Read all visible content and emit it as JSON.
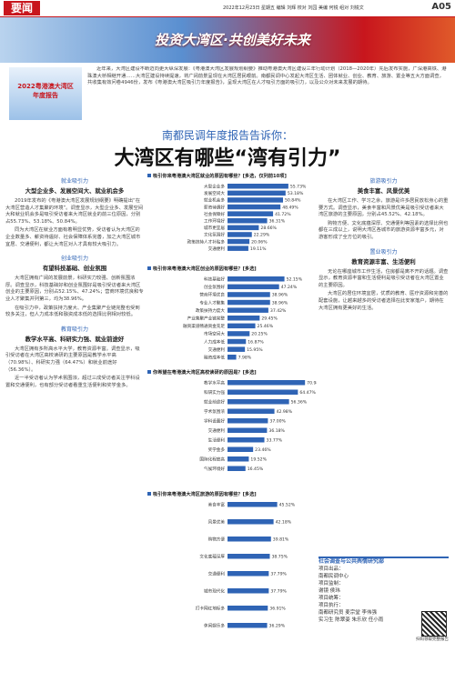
{
  "header": {
    "section": "要闻",
    "date": "2022年12月23日 星期五 编辑 刘辉 校对 刘园 美编 何锐 组对 刘锐文",
    "page": "A05"
  },
  "banner": {
    "title": "投资大湾区·共创美好未来"
  },
  "intro": {
    "logo": "2022粤港澳大湾区年度报告",
    "text": "近年来，大湾区建设不断迈向更大纵深发展：《粤港澳大湾区发展规划纲要》推动粤港澳大湾区建设三年行动计划（2018—2020年）先后发布实施，广深港高铁、港珠澳大桥相继开通……大湾区建设持续提速，将广阔前景呈现在大湾区居民眼前。南都民调中心发起大湾区生活、团体就业、创业、教育、旅游、置业等五大方面调查，共收集有效问卷4946份，发布《粤港澳大湾区吸引力年度报告》，呈现大湾区在人才吸引方面的吸引力，以及公众对未来发展的期待。"
  },
  "headline": {
    "kicker": "南都民调年度报告告诉你：",
    "title": "大湾区有哪些“湾有引力”"
  },
  "sections": [
    {
      "label": "就业吸引力",
      "subtitle": "大型企业多、发展空间大、就业机会多",
      "paragraphs": [
        "2019年发布的《粤港澳大湾区发展规划纲要》明确提出“在大湾区营造人才集聚的环境”。调查显示，大型企业多、发展空间大和就业机会多是吸引受访者来大湾区就业的前三位原因，分别占55.73%、53.18%、50.84%。",
        "同为大湾区在就业方面有着明显优势，受访者认为大湾区的企业数量多、薪资待遇好、社会保障体系完善，加之大湾区城市宜居、交通便利，都让大湾区对人才具有较大吸引力。"
      ]
    },
    {
      "label": "创业吸引力",
      "subtitle": "有望科技基础、创业氛围",
      "paragraphs": [
        "大湾区拥有广阔的发展前景，科研实力较强、创新氛围浓厚。调查显示，科技基础好和创业氛围好是吸引受访者来大湾区创业的主要原因，分别占52.15%、47.24%；营商环境优良和专业人才聚集并列第三，均为38.96%。",
        "在吸引力中，政策扶持力度大、产业集聚产业链完整也受到较多关注，但人力成本低和融资成本低的选择比例相对较低。"
      ]
    },
    {
      "label": "教育吸引力",
      "subtitle": "教学水平高、科研实力强、就业前途好",
      "paragraphs": [
        "大湾区拥有多所高水平大学，教育资源丰富。调查显示，吸引受访者在大湾区高校读研的主要原因是教学水平高（70.98%）、科研实力强（64.47%）和就业前途好（56.36%）。",
        "近一半受访者认为学术氛围浓，超过三成受访者关注学科设置和交通便利，也有部分受访者看重生活便利和奖学金多。"
      ]
    },
    {
      "label": "旅游吸引力",
      "subtitle": "美食丰富、风景优美",
      "paragraphs": [
        "在大湾区工作、学习之余，旅游是许多居民放松身心的重要方式。调查显示，美食丰富和风景优美是吸引受访者来大湾区旅游的主要原因，分别占45.52%、42.18%。",
        "购物方便、文化底蕴深厚、交通便利等因素的选择比例也都在三成以上，说明大湾区各城市的旅游资源丰富多元，对游客形成了全方位的吸引。"
      ]
    },
    {
      "label": "置业吸引力",
      "subtitle": "教育资源丰富、生活便利",
      "paragraphs": [
        "无论在哪座城市工作生活，住房都是离不开的话题。调查显示，教育资源丰富和生活便利是吸引受访者在大湾区置业的主要原因。",
        "大湾区的居住环境宜居，优质的教育、医疗资源和完善的配套设施，让越来越多的受访者选择在此安家落户，期待在大湾区拥有更美好的生活。"
      ]
    }
  ],
  "chart_data": [
    {
      "type": "bar",
      "title": "吸引你来粤港澳大湾区就业的原因有哪些？[多选，仅列前10项]",
      "color": "#2f64b5",
      "categories": [
        "大型企业多",
        "发展空间大",
        "就业机会多",
        "薪资待遇好",
        "社会保障好",
        "工作环境好",
        "城市更宜居",
        "文化氛围好",
        "政策扶持人才补贴多",
        "交通便利"
      ],
      "values": [
        55.73,
        53.18,
        50.84,
        48.49,
        41.72,
        36.31,
        28.66,
        22.29,
        20.06,
        19.11
      ],
      "value_labels": [
        "55.73%",
        "53.18%",
        "50.84%",
        "48.49%",
        "41.72%",
        "36.31%",
        "28.66%",
        "22.29%",
        "20.06%",
        "19.11%"
      ]
    },
    {
      "type": "bar",
      "title": "吸引你来粤港澳大湾区创业的原因有哪些？[多选]",
      "color": "#2f64b5",
      "categories": [
        "科技基础好",
        "创业氛围好",
        "营商环境优良",
        "专业人才聚集",
        "政策扶持力度大",
        "产业集聚产业链完整",
        "融资渠道畅通资金充足",
        "市场空间大",
        "人力成本低",
        "交通便利",
        "融资成本低"
      ],
      "values": [
        52.15,
        47.24,
        38.96,
        38.96,
        37.42,
        29.45,
        25.46,
        20.25,
        16.87,
        15.95,
        7.98
      ],
      "value_labels": [
        "52.15%",
        "47.24%",
        "38.96%",
        "38.96%",
        "37.42%",
        "29.45%",
        "25.46%",
        "20.25%",
        "16.87%",
        "15.95%",
        "7.98%"
      ]
    },
    {
      "type": "bar",
      "title": "你希望在粤港澳大湾区高校读研的原因是？[多选]",
      "color": "#2f64b5",
      "categories": [
        "教学水平高",
        "科研实力强",
        "就业前途好",
        "学术氛围浓",
        "学科设置好",
        "交通便利",
        "生活便利",
        "奖学金多",
        "国际化程度高",
        "气候环境好"
      ],
      "values": [
        70.98,
        64.47,
        56.36,
        42.98,
        37.0,
        36.18,
        33.77,
        23.46,
        19.52,
        16.45
      ],
      "value_labels": [
        "70.98%",
        "64.47%",
        "56.36%",
        "42.98%",
        "37.00%",
        "36.18%",
        "33.77%",
        "23.46%",
        "19.52%",
        "16.45%"
      ]
    },
    {
      "type": "bar",
      "title": "吸引你来粤港澳大湾区旅游的原因有哪些？[多选]",
      "color": "#2f64b5",
      "categories": [
        "美食丰富",
        "风景优美",
        "购物方便",
        "文化底蕴深厚",
        "交通便利",
        "城市现代化",
        "打卡网红地标多",
        "休闲娱乐多"
      ],
      "values": [
        45.52,
        42.18,
        39.81,
        38.75,
        37.79,
        37.79,
        36.91,
        36.29
      ],
      "value_labels": [
        "45.52%",
        "42.18%",
        "39.81%",
        "38.75%",
        "37.79%",
        "37.79%",
        "36.91%",
        "36.29%"
      ]
    }
  ],
  "credits": {
    "title": "社会调查与公共舆情研究部",
    "lines": [
      "项目出品：",
      "南都民调中心",
      "项目监制：",
      "谢镜 侯玮",
      "项目统筹：",
      "项目执行：",
      "南都研究员 麦宗堂 李伟强",
      "实习生 陈翠姿 朱乐欣 任小雨"
    ],
    "qr_caption": "扫码领取完整报告"
  }
}
